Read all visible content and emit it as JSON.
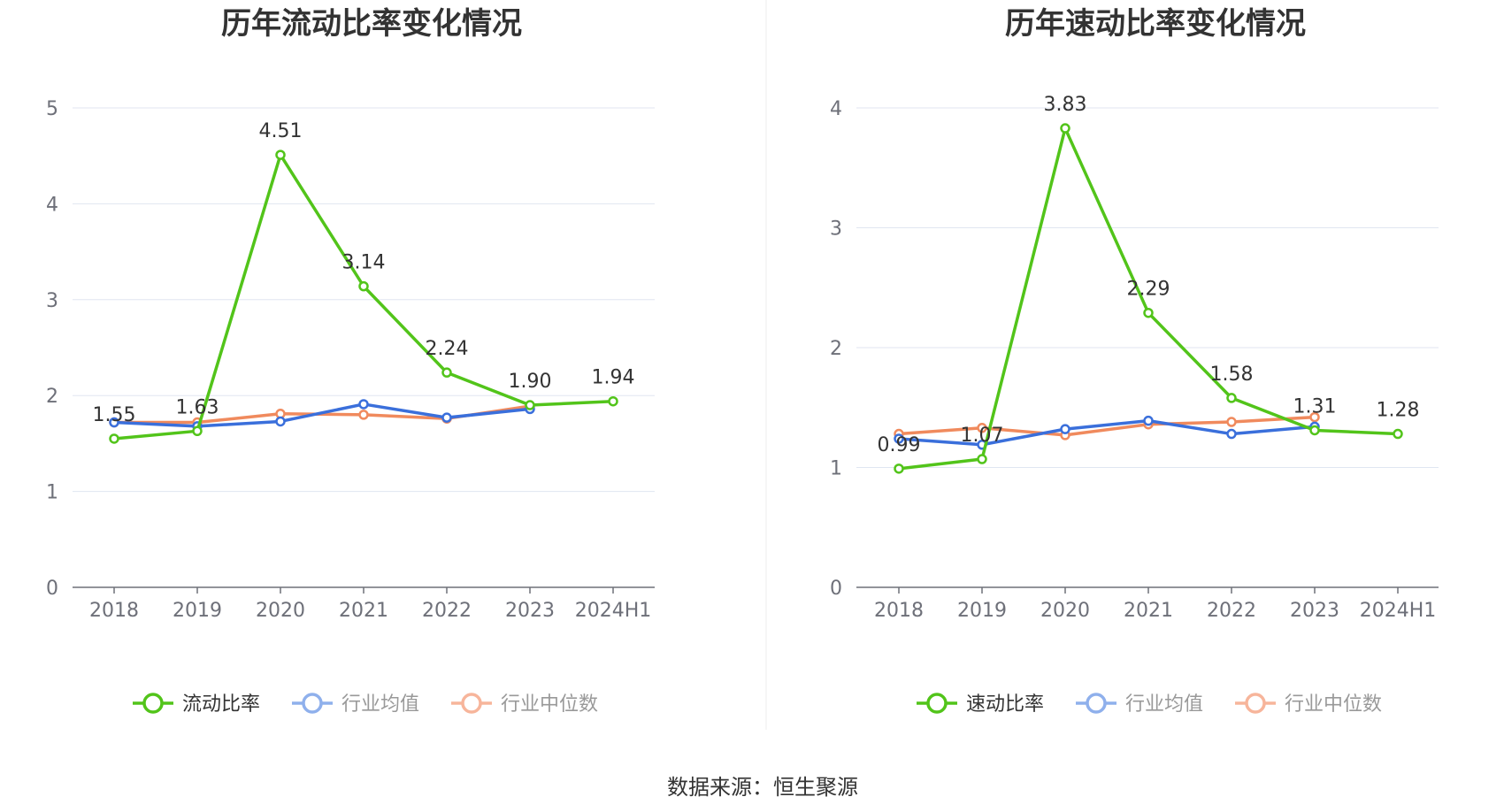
{
  "chart_data": [
    {
      "type": "line",
      "title": "历年流动比率变化情况",
      "categories": [
        "2018",
        "2019",
        "2020",
        "2021",
        "2022",
        "2023",
        "2024H1"
      ],
      "ylim": [
        0,
        5
      ],
      "yticks": [
        "0",
        "1",
        "2",
        "3",
        "4",
        "5"
      ],
      "grid": true,
      "legend_position": "bottom",
      "series": [
        {
          "name": "流动比率",
          "color": "#52c41a",
          "values": [
            1.55,
            1.63,
            4.51,
            3.14,
            2.24,
            1.9,
            1.94
          ],
          "labels": [
            "1.55",
            "1.63",
            "4.51",
            "3.14",
            "2.24",
            "1.90",
            "1.94"
          ]
        },
        {
          "name": "行业均值",
          "color": "#3a6fdb",
          "values": [
            1.72,
            1.68,
            1.73,
            1.91,
            1.77,
            1.86,
            null
          ]
        },
        {
          "name": "行业中位数",
          "color": "#f08a5d",
          "values": [
            1.72,
            1.72,
            1.81,
            1.8,
            1.76,
            1.89,
            null
          ]
        }
      ]
    },
    {
      "type": "line",
      "title": "历年速动比率变化情况",
      "categories": [
        "2018",
        "2019",
        "2020",
        "2021",
        "2022",
        "2023",
        "2024H1"
      ],
      "ylim": [
        0,
        4
      ],
      "yticks": [
        "0",
        "1",
        "2",
        "3",
        "4"
      ],
      "grid": true,
      "legend_position": "bottom",
      "series": [
        {
          "name": "速动比率",
          "color": "#52c41a",
          "values": [
            0.99,
            1.07,
            3.83,
            2.29,
            1.58,
            1.31,
            1.28
          ],
          "labels": [
            "0.99",
            "1.07",
            "3.83",
            "2.29",
            "1.58",
            "1.31",
            "1.28"
          ]
        },
        {
          "name": "行业均值",
          "color": "#3a6fdb",
          "values": [
            1.24,
            1.19,
            1.32,
            1.39,
            1.28,
            1.34,
            null
          ]
        },
        {
          "name": "行业中位数",
          "color": "#f08a5d",
          "values": [
            1.28,
            1.33,
            1.27,
            1.36,
            1.38,
            1.42,
            null
          ]
        }
      ]
    }
  ],
  "legend": {
    "left": [
      {
        "label": "流动比率",
        "color": "#52c41a",
        "text_color": "#333333"
      },
      {
        "label": "行业均值",
        "color": "#8fb0ec",
        "text_color": "#999999"
      },
      {
        "label": "行业中位数",
        "color": "#f7b59b",
        "text_color": "#999999"
      }
    ],
    "right": [
      {
        "label": "速动比率",
        "color": "#52c41a",
        "text_color": "#333333"
      },
      {
        "label": "行业均值",
        "color": "#8fb0ec",
        "text_color": "#999999"
      },
      {
        "label": "行业中位数",
        "color": "#f7b59b",
        "text_color": "#999999"
      }
    ]
  },
  "footer": {
    "source": "数据来源：恒生聚源"
  }
}
